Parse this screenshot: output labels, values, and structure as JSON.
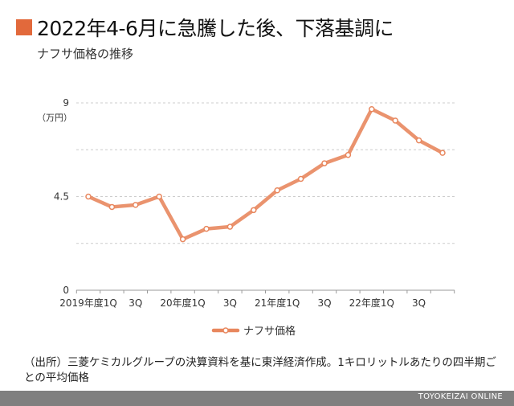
{
  "header": {
    "title": "2022年4-6月に急騰した後、下落基調に",
    "subtitle": "ナフサ価格の推移",
    "accent_color": "#e2693b"
  },
  "chart_data": {
    "type": "line",
    "title": "2022年4-6月に急騰した後、下落基調に",
    "subtitle": "ナフサ価格の推移",
    "ylabel": "（万円）",
    "xlabel": "",
    "ylim": [
      0,
      9
    ],
    "y_ticks": [
      0,
      4.5,
      9
    ],
    "y_tick_labels": [
      "0",
      "4.5",
      "9"
    ],
    "categories": [
      "2019年度1Q",
      "2Q",
      "3Q",
      "4Q",
      "20年度1Q",
      "2Q",
      "3Q",
      "4Q",
      "21年度1Q",
      "2Q",
      "3Q",
      "4Q",
      "22年度1Q",
      "2Q",
      "3Q",
      "4Q"
    ],
    "x_tick_labels": [
      "2019年度1Q",
      "",
      "3Q",
      "",
      "20年度1Q",
      "",
      "3Q",
      "",
      "21年度1Q",
      "",
      "3Q",
      "",
      "22年度1Q",
      "",
      "3Q",
      ""
    ],
    "series": [
      {
        "name": "ナフサ価格",
        "color": "#e8875e",
        "values": [
          4.5,
          4.0,
          4.1,
          4.5,
          2.45,
          2.95,
          3.05,
          3.85,
          4.8,
          5.35,
          6.1,
          6.5,
          8.7,
          8.15,
          7.2,
          6.6
        ]
      }
    ],
    "grid": "horizontal dashed",
    "legend_position": "bottom-center"
  },
  "source": {
    "text": "（出所）三菱ケミカルグループの決算資料を基に東洋経済作成。1キロリットルあたりの四半期ごとの平均価格"
  },
  "footer": {
    "text": "TOYOKEIZAI ONLINE"
  }
}
